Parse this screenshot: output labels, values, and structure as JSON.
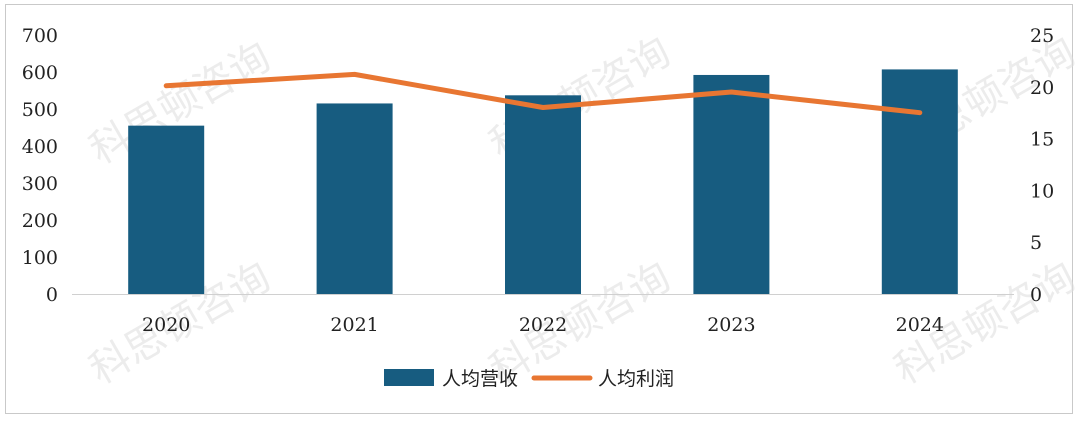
{
  "watermark": "科思顿咨询",
  "chart_data": {
    "type": "bar+line",
    "categories": [
      "2020",
      "2021",
      "2022",
      "2023",
      "2024"
    ],
    "series": [
      {
        "name": "人均营收",
        "type": "bar",
        "axis": "left",
        "values": [
          455,
          515,
          537,
          592,
          607
        ]
      },
      {
        "name": "人均利润",
        "type": "line",
        "axis": "right",
        "values": [
          20.1,
          21.2,
          18.0,
          19.5,
          17.5
        ]
      }
    ],
    "y_left": {
      "min": 0,
      "max": 700,
      "ticks": [
        "0",
        "100",
        "200",
        "300",
        "400",
        "500",
        "600",
        "700"
      ]
    },
    "y_right": {
      "min": 0,
      "max": 25,
      "ticks": [
        "0",
        "5",
        "10",
        "15",
        "20",
        "25"
      ]
    },
    "grid": false,
    "legend_position": "bottom",
    "colors": {
      "bar": "#175c80",
      "line": "#e87632"
    }
  }
}
